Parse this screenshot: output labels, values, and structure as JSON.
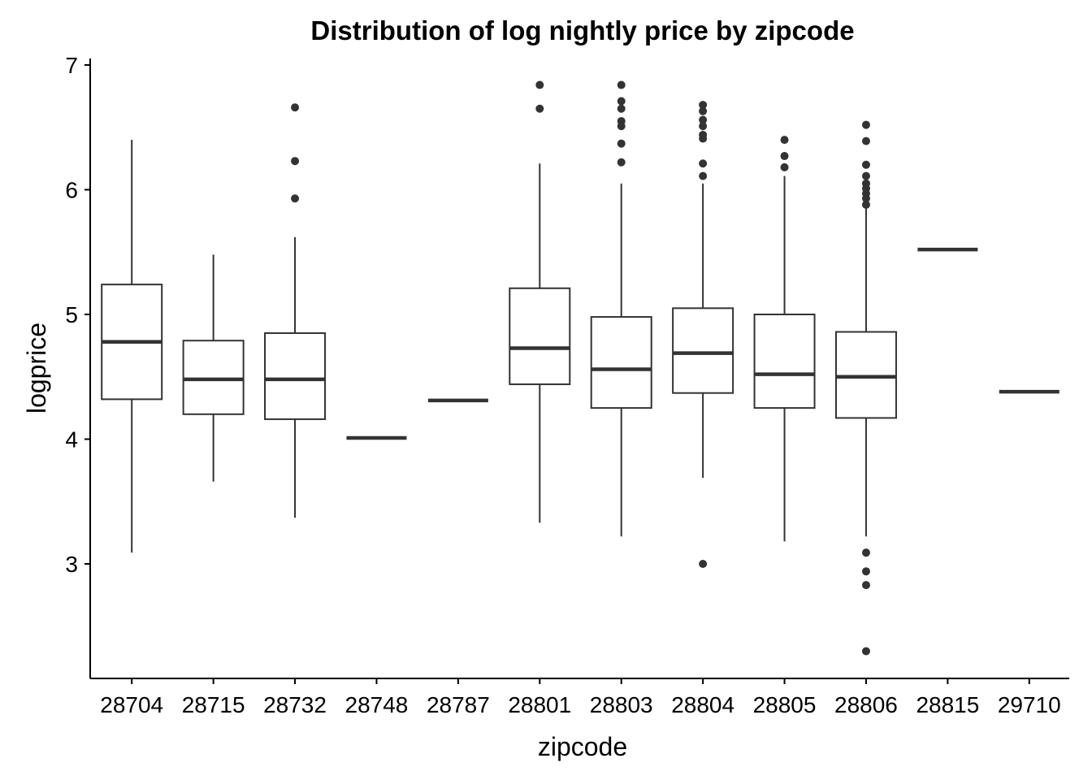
{
  "chart_data": {
    "type": "box",
    "title": "Distribution of log nightly price by zipcode",
    "xlabel": "zipcode",
    "ylabel": "logprice",
    "categories": [
      "28704",
      "28715",
      "28732",
      "28748",
      "28787",
      "28801",
      "28803",
      "28804",
      "28805",
      "28806",
      "28815",
      "29710"
    ],
    "ylim": [
      2.2,
      7.05
    ],
    "yticks": [
      3,
      4,
      5,
      6,
      7
    ],
    "grid": false,
    "legend": "none",
    "colors": {
      "box_stroke": "#333333",
      "box_fill": "#ffffff",
      "outlier": "#333333",
      "axis": "#000000"
    },
    "boxes": [
      {
        "category": "28704",
        "lower_whisker": 3.09,
        "q1": 4.32,
        "median": 4.78,
        "q3": 5.24,
        "upper_whisker": 6.4,
        "outliers": []
      },
      {
        "category": "28715",
        "lower_whisker": 3.66,
        "q1": 4.2,
        "median": 4.48,
        "q3": 4.79,
        "upper_whisker": 5.48,
        "outliers": []
      },
      {
        "category": "28732",
        "lower_whisker": 3.37,
        "q1": 4.16,
        "median": 4.48,
        "q3": 4.85,
        "upper_whisker": 5.62,
        "outliers": [
          5.93,
          6.23,
          6.66
        ]
      },
      {
        "category": "28748",
        "lower_whisker": 4.01,
        "q1": 4.01,
        "median": 4.01,
        "q3": 4.01,
        "upper_whisker": 4.01,
        "outliers": []
      },
      {
        "category": "28787",
        "lower_whisker": 4.31,
        "q1": 4.31,
        "median": 4.31,
        "q3": 4.31,
        "upper_whisker": 4.31,
        "outliers": []
      },
      {
        "category": "28801",
        "lower_whisker": 3.33,
        "q1": 4.44,
        "median": 4.73,
        "q3": 5.21,
        "upper_whisker": 6.21,
        "outliers": [
          6.65,
          6.84
        ]
      },
      {
        "category": "28803",
        "lower_whisker": 3.22,
        "q1": 4.25,
        "median": 4.56,
        "q3": 4.98,
        "upper_whisker": 6.05,
        "outliers": [
          6.22,
          6.37,
          6.51,
          6.55,
          6.65,
          6.71,
          6.84
        ]
      },
      {
        "category": "28804",
        "lower_whisker": 3.69,
        "q1": 4.37,
        "median": 4.69,
        "q3": 5.05,
        "upper_whisker": 6.05,
        "outliers": [
          3.0,
          6.11,
          6.21,
          6.41,
          6.44,
          6.51,
          6.56,
          6.63,
          6.68
        ]
      },
      {
        "category": "28805",
        "lower_whisker": 3.18,
        "q1": 4.25,
        "median": 4.52,
        "q3": 5.0,
        "upper_whisker": 6.11,
        "outliers": [
          6.18,
          6.27,
          6.4
        ]
      },
      {
        "category": "28806",
        "lower_whisker": 3.22,
        "q1": 4.17,
        "median": 4.5,
        "q3": 4.86,
        "upper_whisker": 5.86,
        "outliers": [
          2.3,
          2.83,
          2.94,
          3.09,
          5.88,
          5.93,
          5.97,
          6.01,
          6.05,
          6.11,
          6.2,
          6.39,
          6.52
        ]
      },
      {
        "category": "28815",
        "lower_whisker": 5.52,
        "q1": 5.52,
        "median": 5.52,
        "q3": 5.52,
        "upper_whisker": 5.52,
        "outliers": []
      },
      {
        "category": "29710",
        "lower_whisker": 4.38,
        "q1": 4.38,
        "median": 4.38,
        "q3": 4.38,
        "upper_whisker": 4.38,
        "outliers": []
      }
    ]
  }
}
